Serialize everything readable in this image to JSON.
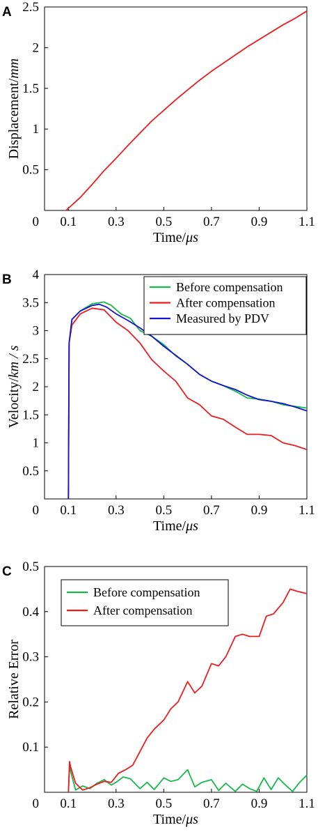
{
  "chart_data": [
    {
      "panel": "A",
      "type": "line",
      "xlabel": "Time/μs",
      "ylabel": "Displacement/mm",
      "xlim": [
        0,
        1.1
      ],
      "ylim": [
        0,
        2.5
      ],
      "xticks": [
        0.1,
        0.3,
        0.5,
        0.7,
        0.9,
        1.1
      ],
      "xtick_labels": [
        "0.1",
        "0.3",
        "0.5",
        "0.7",
        "0.9",
        "1.1"
      ],
      "yticks": [
        0.5,
        1,
        1.5,
        2,
        2.5
      ],
      "ytick_labels": [
        "0.5",
        "1",
        "1.5",
        "2",
        "2.5"
      ],
      "origin_label": "0",
      "legend": null,
      "series": [
        {
          "color": "#ee1c1c",
          "x": [
            0.09,
            0.15,
            0.2,
            0.25,
            0.3,
            0.35,
            0.4,
            0.45,
            0.5,
            0.55,
            0.6,
            0.65,
            0.7,
            0.75,
            0.8,
            0.85,
            0.9,
            0.95,
            1.0,
            1.05,
            1.1
          ],
          "y": [
            0.0,
            0.16,
            0.32,
            0.49,
            0.64,
            0.8,
            0.95,
            1.1,
            1.23,
            1.36,
            1.48,
            1.6,
            1.71,
            1.81,
            1.91,
            2.01,
            2.1,
            2.19,
            2.28,
            2.36,
            2.45
          ]
        }
      ]
    },
    {
      "panel": "B",
      "type": "line",
      "xlabel": "Time/μs",
      "ylabel": "Velocity/km / s",
      "xlim": [
        0,
        1.1
      ],
      "ylim": [
        0,
        4
      ],
      "xticks": [
        0.1,
        0.3,
        0.5,
        0.7,
        0.9,
        1.1
      ],
      "xtick_labels": [
        "0.1",
        "0.3",
        "0.5",
        "0.7",
        "0.9",
        "1.1"
      ],
      "yticks": [
        0.5,
        1,
        1.5,
        2,
        2.5,
        3,
        3.5,
        4
      ],
      "ytick_labels": [
        "0.5",
        "1",
        "1.5",
        "2",
        "2.5",
        "3",
        "3.5",
        "4"
      ],
      "origin_label": "0",
      "legend": "top-right",
      "series": [
        {
          "name": "Before compensation",
          "color": "#16b84a",
          "x": [
            0.1,
            0.103,
            0.115,
            0.15,
            0.2,
            0.25,
            0.28,
            0.32,
            0.36,
            0.4,
            0.45,
            0.5,
            0.55,
            0.6,
            0.65,
            0.7,
            0.75,
            0.8,
            0.85,
            0.9,
            0.95,
            1.0,
            1.05,
            1.1
          ],
          "y": [
            0.0,
            2.78,
            3.2,
            3.35,
            3.48,
            3.51,
            3.45,
            3.3,
            3.22,
            3.0,
            2.9,
            2.75,
            2.55,
            2.4,
            2.22,
            2.1,
            2.02,
            1.92,
            1.8,
            1.78,
            1.74,
            1.68,
            1.65,
            1.62
          ]
        },
        {
          "name": "After compensation",
          "color": "#ee1c1c",
          "x": [
            0.1,
            0.103,
            0.115,
            0.15,
            0.2,
            0.25,
            0.3,
            0.35,
            0.4,
            0.45,
            0.5,
            0.55,
            0.6,
            0.65,
            0.7,
            0.75,
            0.8,
            0.85,
            0.9,
            0.95,
            1.0,
            1.05,
            1.1
          ],
          "y": [
            0.0,
            2.78,
            3.1,
            3.3,
            3.4,
            3.37,
            3.15,
            3.0,
            2.78,
            2.48,
            2.28,
            2.1,
            1.8,
            1.68,
            1.48,
            1.42,
            1.28,
            1.15,
            1.15,
            1.13,
            1.0,
            0.95,
            0.88
          ]
        },
        {
          "name": "Measured by PDV",
          "color": "#1414d2",
          "x": [
            0.1,
            0.103,
            0.115,
            0.15,
            0.2,
            0.23,
            0.26,
            0.3,
            0.35,
            0.4,
            0.45,
            0.5,
            0.55,
            0.6,
            0.65,
            0.7,
            0.75,
            0.8,
            0.85,
            0.9,
            0.95,
            1.0,
            1.05,
            1.1
          ],
          "y": [
            0.0,
            2.78,
            3.2,
            3.35,
            3.45,
            3.47,
            3.42,
            3.3,
            3.18,
            3.05,
            2.9,
            2.72,
            2.56,
            2.4,
            2.22,
            2.1,
            2.02,
            1.95,
            1.85,
            1.77,
            1.74,
            1.7,
            1.64,
            1.57
          ]
        }
      ]
    },
    {
      "panel": "C",
      "type": "line",
      "xlabel": "Time/μs",
      "ylabel": "Relative Error",
      "xlim": [
        0,
        1.1
      ],
      "ylim": [
        0,
        0.5
      ],
      "xticks": [
        0.1,
        0.3,
        0.5,
        0.7,
        0.9,
        1.1
      ],
      "xtick_labels": [
        "0.1",
        "0.3",
        "0.5",
        "0.7",
        "0.9",
        "1.1"
      ],
      "yticks": [
        0.1,
        0.2,
        0.3,
        0.4,
        0.5
      ],
      "ytick_labels": [
        "0.1",
        "0.2",
        "0.3",
        "0.4",
        "0.5"
      ],
      "origin_label": "0",
      "legend": "top-left",
      "series": [
        {
          "name": "Before compensation",
          "color": "#16b84a",
          "x": [
            0.1,
            0.105,
            0.11,
            0.13,
            0.16,
            0.19,
            0.22,
            0.25,
            0.28,
            0.3,
            0.33,
            0.36,
            0.4,
            0.43,
            0.46,
            0.5,
            0.53,
            0.56,
            0.6,
            0.63,
            0.66,
            0.7,
            0.73,
            0.76,
            0.8,
            0.83,
            0.86,
            0.89,
            0.92,
            0.95,
            0.98,
            1.01,
            1.04,
            1.07,
            1.1
          ],
          "y": [
            0.0,
            0.062,
            0.045,
            0.005,
            0.014,
            0.008,
            0.02,
            0.028,
            0.016,
            0.022,
            0.034,
            0.03,
            0.008,
            0.022,
            0.006,
            0.032,
            0.024,
            0.028,
            0.05,
            0.012,
            0.022,
            0.028,
            0.004,
            0.02,
            0.002,
            0.018,
            0.008,
            0.002,
            0.032,
            0.006,
            0.032,
            0.016,
            0.002,
            0.022,
            0.038
          ]
        },
        {
          "name": "After compensation",
          "color": "#ee1c1c",
          "x": [
            0.1,
            0.105,
            0.11,
            0.13,
            0.16,
            0.19,
            0.22,
            0.25,
            0.28,
            0.31,
            0.34,
            0.37,
            0.4,
            0.43,
            0.46,
            0.5,
            0.53,
            0.56,
            0.6,
            0.63,
            0.66,
            0.7,
            0.73,
            0.76,
            0.8,
            0.83,
            0.86,
            0.9,
            0.93,
            0.96,
            1.0,
            1.03,
            1.06,
            1.1
          ],
          "y": [
            0.0,
            0.068,
            0.055,
            0.02,
            0.005,
            0.01,
            0.018,
            0.024,
            0.022,
            0.042,
            0.05,
            0.06,
            0.09,
            0.12,
            0.14,
            0.16,
            0.185,
            0.2,
            0.245,
            0.22,
            0.235,
            0.285,
            0.28,
            0.3,
            0.345,
            0.35,
            0.345,
            0.345,
            0.39,
            0.395,
            0.42,
            0.45,
            0.445,
            0.44
          ]
        }
      ]
    }
  ]
}
